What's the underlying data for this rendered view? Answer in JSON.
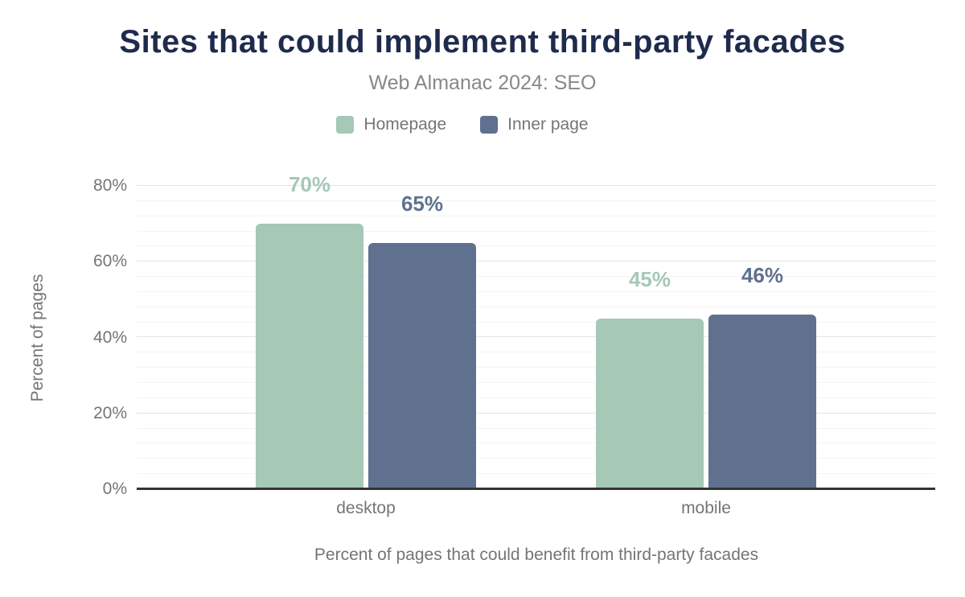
{
  "header": {
    "title": "Sites that could implement third-party facades",
    "subtitle": "Web Almanac 2024: SEO"
  },
  "legend": {
    "position": "top",
    "items": [
      {
        "label": "Homepage",
        "color": "#a5c8b7"
      },
      {
        "label": "Inner page",
        "color": "#5f718e"
      }
    ]
  },
  "chart_data": {
    "type": "bar",
    "categories": [
      "desktop",
      "mobile"
    ],
    "series": [
      {
        "name": "Homepage",
        "color": "#a5c8b7",
        "values": [
          70,
          45
        ],
        "data_labels": [
          "70%",
          "45%"
        ]
      },
      {
        "name": "Inner page",
        "color": "#5f718e",
        "values": [
          65,
          46
        ],
        "data_labels": [
          "65%",
          "46%"
        ]
      }
    ],
    "title": "Sites that could implement third-party facades",
    "subtitle": "Web Almanac 2024: SEO",
    "xlabel": "Percent of pages that could benefit from third-party facades",
    "ylabel": "Percent of pages",
    "ylim": [
      0,
      80
    ],
    "yticks": [
      0,
      20,
      40,
      60,
      80
    ],
    "ytick_labels": [
      "0%",
      "20%",
      "40%",
      "60%",
      "80%"
    ],
    "grid": "on",
    "minor_grid_step_pct": 4,
    "major_grid_step_pct": 20,
    "legend_position": "top"
  },
  "colors": {
    "background": "#ffffff",
    "title": "#1f2b4d",
    "subtitle": "#85898c",
    "axis_text": "#757575",
    "axis_line": "#333333",
    "grid_major": "#e3e5e7",
    "grid_minor": "#f3f4f5",
    "homepage_series": "#a5c8b7",
    "inner_page_series": "#5f718e"
  }
}
